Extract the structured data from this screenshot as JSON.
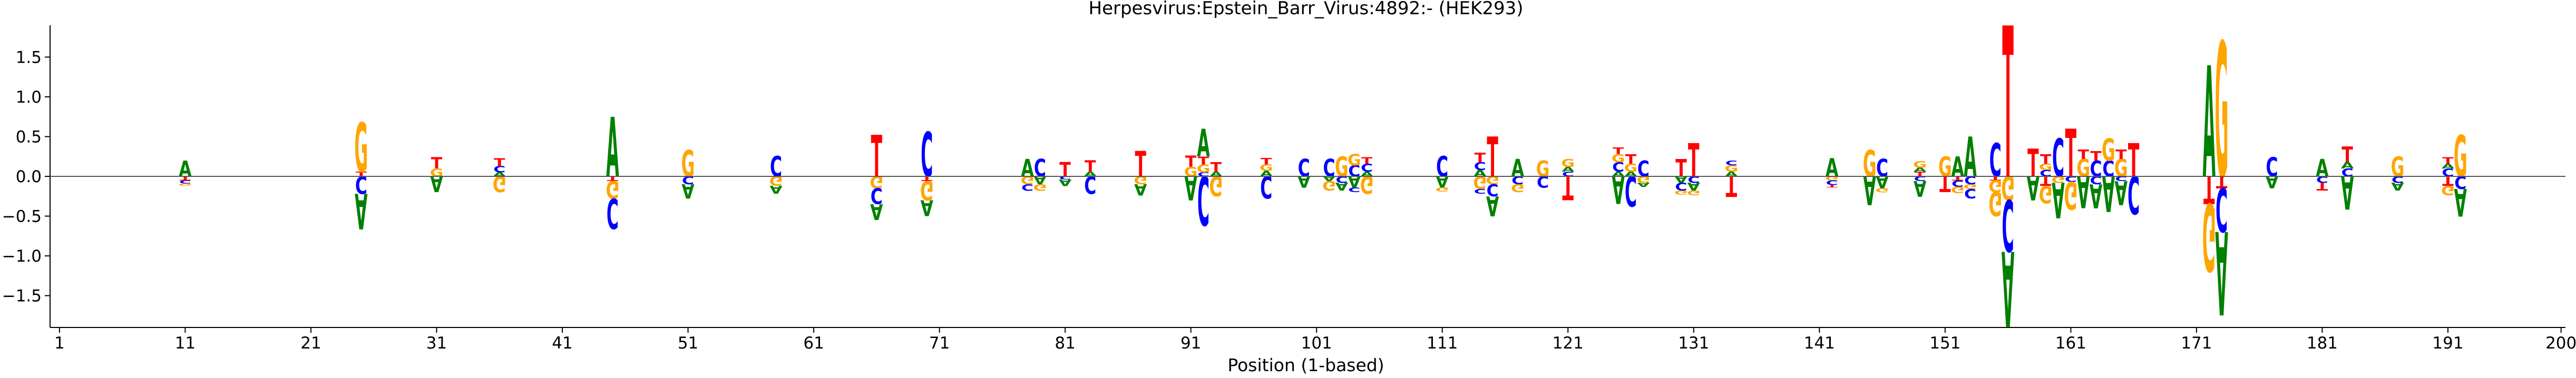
{
  "chart_data": {
    "type": "sequence-logo",
    "title": "Herpesvirus:Epstein_Barr_Virus:4892:-  (HEK293)",
    "xlabel": "Position (1-based)",
    "ylabel": "",
    "xlim": [
      0,
      200
    ],
    "ylim": [
      -1.9,
      1.9
    ],
    "x_ticks": [
      1,
      11,
      21,
      31,
      41,
      51,
      61,
      71,
      81,
      91,
      101,
      111,
      121,
      131,
      141,
      151,
      161,
      171,
      181,
      191,
      200
    ],
    "y_ticks": [
      -1.5,
      -1.0,
      -0.5,
      0.0,
      0.5,
      1.0,
      1.5
    ],
    "y_tick_labels": [
      "−1.5",
      "−1.0",
      "−0.5",
      "0.0",
      "0.5",
      "1.0",
      "1.5"
    ],
    "grid": false,
    "zero_line": true,
    "colors": {
      "A": "#008000",
      "C": "#0000ff",
      "G": "#ffa500",
      "T": "#ff0000"
    },
    "columns": [
      {
        "pos": 11,
        "up": [
          [
            "A",
            0.2
          ]
        ],
        "down": [
          [
            "T",
            0.05
          ],
          [
            "C",
            0.04
          ],
          [
            "G",
            0.03
          ]
        ]
      },
      {
        "pos": 25,
        "up": [
          [
            "T",
            0.06
          ],
          [
            "G",
            0.62
          ]
        ],
        "down": [
          [
            "C",
            0.22
          ],
          [
            "A",
            0.45
          ]
        ]
      },
      {
        "pos": 31,
        "up": [
          [
            "G",
            0.1
          ],
          [
            "T",
            0.14
          ]
        ],
        "down": [
          [
            "A",
            0.2
          ]
        ]
      },
      {
        "pos": 36,
        "up": [
          [
            "A",
            0.05
          ],
          [
            "C",
            0.08
          ],
          [
            "T",
            0.1
          ]
        ],
        "down": [
          [
            "G",
            0.2
          ]
        ]
      },
      {
        "pos": 45,
        "up": [
          [
            "A",
            0.75
          ]
        ],
        "down": [
          [
            "T",
            0.06
          ],
          [
            "G",
            0.22
          ],
          [
            "C",
            0.38
          ]
        ]
      },
      {
        "pos": 51,
        "up": [
          [
            "G",
            0.33
          ]
        ],
        "down": [
          [
            "C",
            0.1
          ],
          [
            "A",
            0.18
          ]
        ]
      },
      {
        "pos": 58,
        "up": [
          [
            "C",
            0.26
          ]
        ],
        "down": [
          [
            "G",
            0.12
          ],
          [
            "A",
            0.1
          ]
        ]
      },
      {
        "pos": 66,
        "up": [
          [
            "T",
            0.52
          ]
        ],
        "down": [
          [
            "G",
            0.15
          ],
          [
            "C",
            0.2
          ],
          [
            "A",
            0.2
          ]
        ]
      },
      {
        "pos": 70,
        "up": [
          [
            "C",
            0.56
          ]
        ],
        "down": [
          [
            "T",
            0.06
          ],
          [
            "G",
            0.24
          ],
          [
            "A",
            0.2
          ]
        ]
      },
      {
        "pos": 78,
        "up": [
          [
            "A",
            0.22
          ]
        ],
        "down": [
          [
            "G",
            0.1
          ],
          [
            "C",
            0.08
          ]
        ]
      },
      {
        "pos": 79,
        "up": [
          [
            "C",
            0.22
          ]
        ],
        "down": [
          [
            "A",
            0.1
          ],
          [
            "G",
            0.08
          ]
        ]
      },
      {
        "pos": 81,
        "up": [
          [
            "T",
            0.18
          ]
        ],
        "down": [
          [
            "C",
            0.04
          ],
          [
            "A",
            0.08
          ]
        ]
      },
      {
        "pos": 83,
        "up": [
          [
            "A",
            0.06
          ],
          [
            "T",
            0.14
          ]
        ],
        "down": [
          [
            "C",
            0.22
          ]
        ]
      },
      {
        "pos": 87,
        "up": [
          [
            "T",
            0.32
          ]
        ],
        "down": [
          [
            "G",
            0.1
          ],
          [
            "A",
            0.14
          ]
        ]
      },
      {
        "pos": 91,
        "up": [
          [
            "G",
            0.12
          ],
          [
            "T",
            0.14
          ]
        ],
        "down": [
          [
            "A",
            0.3
          ]
        ]
      },
      {
        "pos": 92,
        "up": [
          [
            "C",
            0.05
          ],
          [
            "G",
            0.1
          ],
          [
            "T",
            0.1
          ],
          [
            "A",
            0.35
          ]
        ],
        "down": [
          [
            "C",
            0.62
          ]
        ]
      },
      {
        "pos": 93,
        "up": [
          [
            "A",
            0.06
          ],
          [
            "T",
            0.12
          ]
        ],
        "down": [
          [
            "G",
            0.25
          ]
        ]
      },
      {
        "pos": 97,
        "up": [
          [
            "A",
            0.07
          ],
          [
            "G",
            0.08
          ],
          [
            "T",
            0.08
          ]
        ],
        "down": [
          [
            "C",
            0.28
          ]
        ]
      },
      {
        "pos": 100,
        "up": [
          [
            "C",
            0.22
          ]
        ],
        "down": [
          [
            "A",
            0.14
          ]
        ]
      },
      {
        "pos": 102,
        "up": [
          [
            "C",
            0.22
          ]
        ],
        "down": [
          [
            "A",
            0.06
          ],
          [
            "G",
            0.12
          ]
        ]
      },
      {
        "pos": 103,
        "up": [
          [
            "G",
            0.25
          ]
        ],
        "down": [
          [
            "C",
            0.08
          ],
          [
            "A",
            0.1
          ]
        ]
      },
      {
        "pos": 104,
        "up": [
          [
            "C",
            0.14
          ],
          [
            "G",
            0.14
          ]
        ],
        "down": [
          [
            "A",
            0.14
          ],
          [
            "C",
            0.06
          ]
        ]
      },
      {
        "pos": 105,
        "up": [
          [
            "A",
            0.06
          ],
          [
            "C",
            0.1
          ],
          [
            "T",
            0.08
          ]
        ],
        "down": [
          [
            "G",
            0.22
          ]
        ]
      },
      {
        "pos": 111,
        "up": [
          [
            "C",
            0.26
          ]
        ],
        "down": [
          [
            "A",
            0.14
          ],
          [
            "G",
            0.05
          ]
        ]
      },
      {
        "pos": 114,
        "up": [
          [
            "A",
            0.08
          ],
          [
            "C",
            0.1
          ],
          [
            "T",
            0.12
          ]
        ],
        "down": [
          [
            "G",
            0.16
          ],
          [
            "C",
            0.06
          ]
        ]
      },
      {
        "pos": 115,
        "up": [
          [
            "T",
            0.5
          ]
        ],
        "down": [
          [
            "G",
            0.1
          ],
          [
            "C",
            0.15
          ],
          [
            "A",
            0.25
          ]
        ]
      },
      {
        "pos": 117,
        "up": [
          [
            "A",
            0.22
          ]
        ],
        "down": [
          [
            "C",
            0.1
          ],
          [
            "G",
            0.1
          ]
        ]
      },
      {
        "pos": 119,
        "up": [
          [
            "G",
            0.2
          ]
        ],
        "down": [
          [
            "C",
            0.14
          ]
        ]
      },
      {
        "pos": 121,
        "up": [
          [
            "C",
            0.06
          ],
          [
            "A",
            0.06
          ],
          [
            "G",
            0.1
          ]
        ],
        "down": [
          [
            "T",
            0.3
          ]
        ]
      },
      {
        "pos": 125,
        "up": [
          [
            "A",
            0.06
          ],
          [
            "C",
            0.12
          ],
          [
            "G",
            0.1
          ],
          [
            "T",
            0.08
          ]
        ],
        "down": [
          [
            "A",
            0.35
          ]
        ]
      },
      {
        "pos": 126,
        "up": [
          [
            "A",
            0.06
          ],
          [
            "G",
            0.1
          ],
          [
            "T",
            0.12
          ]
        ],
        "down": [
          [
            "C",
            0.38
          ]
        ]
      },
      {
        "pos": 127,
        "up": [
          [
            "C",
            0.2
          ]
        ],
        "down": [
          [
            "G",
            0.08
          ],
          [
            "A",
            0.05
          ]
        ]
      },
      {
        "pos": 130,
        "up": [
          [
            "T",
            0.22
          ]
        ],
        "down": [
          [
            "A",
            0.08
          ],
          [
            "C",
            0.1
          ],
          [
            "G",
            0.05
          ]
        ]
      },
      {
        "pos": 131,
        "up": [
          [
            "T",
            0.42
          ]
        ],
        "down": [
          [
            "C",
            0.08
          ],
          [
            "A",
            0.1
          ],
          [
            "G",
            0.06
          ]
        ]
      },
      {
        "pos": 134,
        "up": [
          [
            "A",
            0.06
          ],
          [
            "G",
            0.08
          ],
          [
            "C",
            0.06
          ]
        ],
        "down": [
          [
            "T",
            0.26
          ]
        ]
      },
      {
        "pos": 142,
        "up": [
          [
            "A",
            0.23
          ]
        ],
        "down": [
          [
            "G",
            0.05
          ],
          [
            "C",
            0.06
          ],
          [
            "T",
            0.03
          ]
        ]
      },
      {
        "pos": 145,
        "up": [
          [
            "G",
            0.33
          ]
        ],
        "down": [
          [
            "A",
            0.36
          ]
        ]
      },
      {
        "pos": 146,
        "up": [
          [
            "C",
            0.22
          ]
        ],
        "down": [
          [
            "A",
            0.15
          ],
          [
            "G",
            0.05
          ]
        ]
      },
      {
        "pos": 149,
        "up": [
          [
            "T",
            0.06
          ],
          [
            "A",
            0.05
          ],
          [
            "G",
            0.08
          ]
        ],
        "down": [
          [
            "C",
            0.06
          ],
          [
            "A",
            0.2
          ]
        ]
      },
      {
        "pos": 151,
        "up": [
          [
            "G",
            0.25
          ]
        ],
        "down": [
          [
            "T",
            0.2
          ]
        ]
      },
      {
        "pos": 152,
        "up": [
          [
            "A",
            0.25
          ]
        ],
        "down": [
          [
            "T",
            0.05
          ],
          [
            "C",
            0.08
          ],
          [
            "G",
            0.08
          ]
        ]
      },
      {
        "pos": 153,
        "up": [
          [
            "A",
            0.5
          ]
        ],
        "down": [
          [
            "C",
            0.1
          ],
          [
            "G",
            0.06
          ],
          [
            "C",
            0.12
          ]
        ]
      },
      {
        "pos": 155,
        "up": [
          [
            "C",
            0.42
          ]
        ],
        "down": [
          [
            "T",
            0.05
          ],
          [
            "G",
            0.15
          ],
          [
            "G",
            0.3
          ]
        ]
      },
      {
        "pos": 156,
        "up": [
          [
            "T",
            1.9
          ]
        ],
        "down": [
          [
            "G",
            0.3
          ],
          [
            "C",
            0.65
          ],
          [
            "A",
            0.95
          ]
        ]
      },
      {
        "pos": 158,
        "up": [
          [
            "T",
            0.35
          ]
        ],
        "down": [
          [
            "A",
            0.3
          ]
        ]
      },
      {
        "pos": 159,
        "up": [
          [
            "C",
            0.08
          ],
          [
            "G",
            0.08
          ],
          [
            "T",
            0.12
          ]
        ],
        "down": [
          [
            "T",
            0.12
          ],
          [
            "G",
            0.22
          ]
        ]
      },
      {
        "pos": 160,
        "up": [
          [
            "C",
            0.48
          ]
        ],
        "down": [
          [
            "G",
            0.08
          ],
          [
            "A",
            0.45
          ]
        ]
      },
      {
        "pos": 161,
        "up": [
          [
            "T",
            0.6
          ]
        ],
        "down": [
          [
            "C",
            0.07
          ],
          [
            "G",
            0.35
          ]
        ]
      },
      {
        "pos": 162,
        "up": [
          [
            "G",
            0.22
          ],
          [
            "T",
            0.12
          ]
        ],
        "down": [
          [
            "A",
            0.4
          ]
        ]
      },
      {
        "pos": 163,
        "up": [
          [
            "C",
            0.2
          ],
          [
            "T",
            0.12
          ]
        ],
        "down": [
          [
            "C",
            0.1
          ],
          [
            "A",
            0.3
          ]
        ]
      },
      {
        "pos": 164,
        "up": [
          [
            "C",
            0.2
          ],
          [
            "G",
            0.28
          ]
        ],
        "down": [
          [
            "A",
            0.45
          ]
        ]
      },
      {
        "pos": 165,
        "up": [
          [
            "G",
            0.22
          ],
          [
            "T",
            0.12
          ]
        ],
        "down": [
          [
            "C",
            0.06
          ],
          [
            "A",
            0.3
          ]
        ]
      },
      {
        "pos": 166,
        "up": [
          [
            "T",
            0.42
          ]
        ],
        "down": [
          [
            "C",
            0.48
          ]
        ]
      },
      {
        "pos": 172,
        "up": [
          [
            "A",
            1.4
          ]
        ],
        "down": [
          [
            "T",
            0.35
          ],
          [
            "G",
            0.85
          ]
        ]
      },
      {
        "pos": 173,
        "up": [
          [
            "G",
            1.7
          ]
        ],
        "down": [
          [
            "T",
            0.15
          ],
          [
            "C",
            0.55
          ],
          [
            "A",
            1.05
          ]
        ]
      },
      {
        "pos": 177,
        "up": [
          [
            "C",
            0.24
          ]
        ],
        "down": [
          [
            "A",
            0.15
          ]
        ]
      },
      {
        "pos": 181,
        "up": [
          [
            "A",
            0.22
          ]
        ],
        "down": [
          [
            "C",
            0.08
          ],
          [
            "T",
            0.1
          ]
        ]
      },
      {
        "pos": 183,
        "up": [
          [
            "C",
            0.1
          ],
          [
            "A",
            0.08
          ],
          [
            "T",
            0.2
          ]
        ],
        "down": [
          [
            "A",
            0.42
          ]
        ]
      },
      {
        "pos": 187,
        "up": [
          [
            "G",
            0.25
          ]
        ],
        "down": [
          [
            "C",
            0.08
          ],
          [
            "A",
            0.1
          ]
        ]
      },
      {
        "pos": 191,
        "up": [
          [
            "C",
            0.1
          ],
          [
            "A",
            0.06
          ],
          [
            "T",
            0.08
          ]
        ],
        "down": [
          [
            "T",
            0.12
          ],
          [
            "G",
            0.12
          ]
        ]
      },
      {
        "pos": 192,
        "up": [
          [
            "G",
            0.52
          ]
        ],
        "down": [
          [
            "C",
            0.16
          ],
          [
            "A",
            0.35
          ]
        ]
      }
    ]
  }
}
